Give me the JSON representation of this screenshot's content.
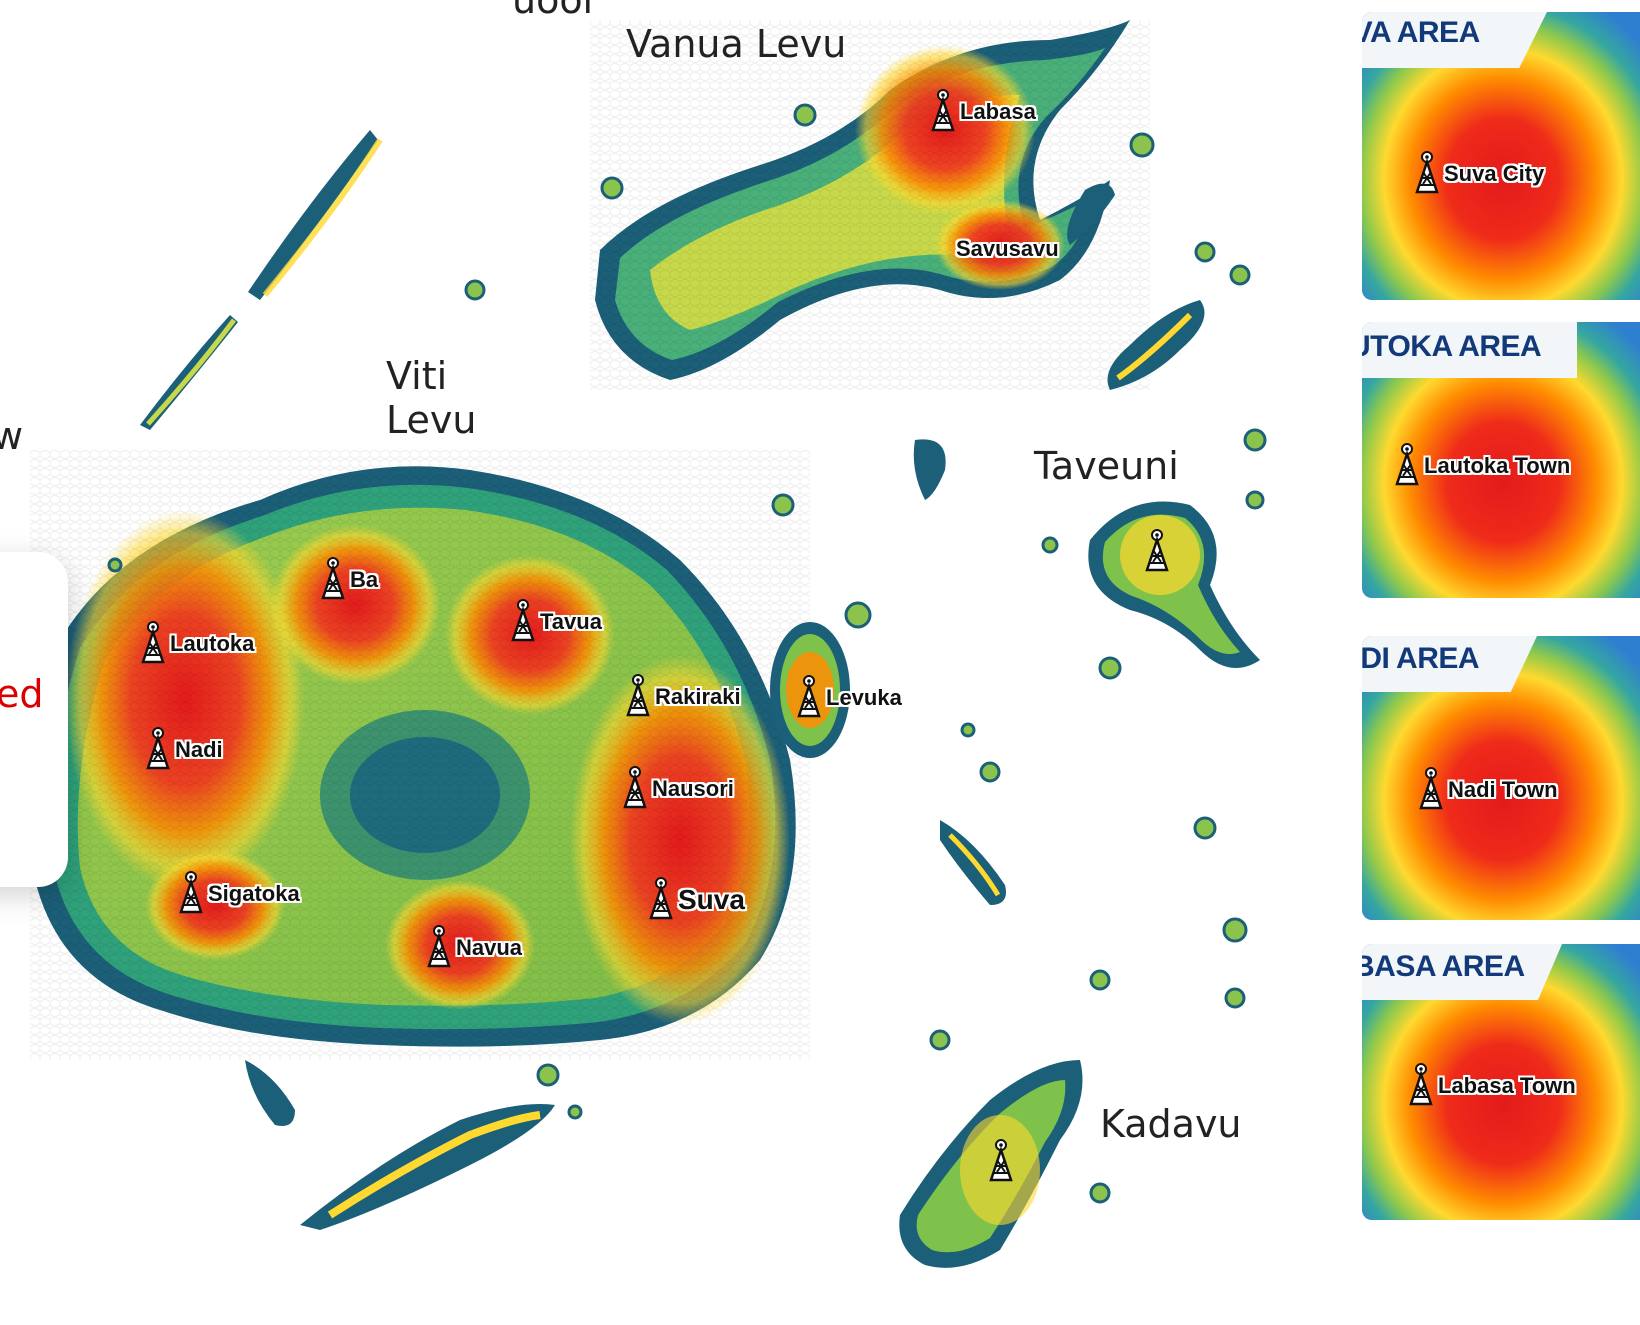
{
  "colors": {
    "hot": "#e31a1c",
    "warm": "#ff7f00",
    "mid": "#ffd92f",
    "cool": "#74c476",
    "cold": "#2c8aa8",
    "edge": "#1c5f78",
    "panel_title": "#123a7a",
    "card_red": "#d90000"
  },
  "top_fragment": "uoor",
  "islands": {
    "vanua_levu": "Vanua Levu",
    "viti_levu_1": "Viti",
    "viti_levu_2": "Levu",
    "taveuni": "Taveuni",
    "kadavu": "Kadavu"
  },
  "left_fragments": {
    "w": "w",
    "ed": "ed"
  },
  "sites": {
    "labasa": "Labasa",
    "savusavu": "Savusavu",
    "ba": "Ba",
    "tavua": "Tavua",
    "lautoka": "Lautoka",
    "nadi": "Nadi",
    "rakiraki": "Rakiraki",
    "levuka": "Levuka",
    "nausori": "Nausori",
    "suva": "Suva",
    "sigatoka": "Sigatoka",
    "navua": "Navua"
  },
  "icons": [
    "cell-tower-icon"
  ],
  "panels": [
    {
      "title": "SUVA AREA",
      "site": "Suva City"
    },
    {
      "title": "LAUTOKA AREA",
      "site": "Lautoka Town"
    },
    {
      "title": "NADI AREA",
      "site": "Nadi Town"
    },
    {
      "title": "LABASA AREA",
      "site": "Labasa Town"
    }
  ]
}
